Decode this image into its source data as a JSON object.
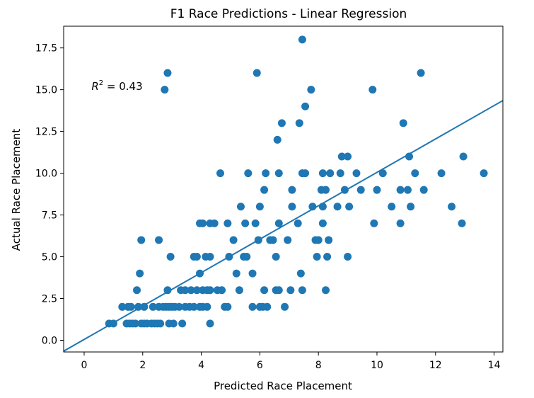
{
  "chart_data": {
    "type": "scatter",
    "title": "F1 Race Predictions - Linear Regression",
    "xlabel": "Predicted Race Placement",
    "ylabel": "Actual Race Placement",
    "xlim": [
      -0.7,
      14.3
    ],
    "ylim": [
      -0.7,
      18.8
    ],
    "xticks": [
      0,
      2,
      4,
      6,
      8,
      10,
      12,
      14
    ],
    "xtick_labels": [
      "0",
      "2",
      "4",
      "6",
      "8",
      "10",
      "12",
      "14"
    ],
    "yticks": [
      0.0,
      2.5,
      5.0,
      7.5,
      10.0,
      12.5,
      15.0,
      17.5
    ],
    "ytick_labels": [
      "0.0",
      "2.5",
      "5.0",
      "7.5",
      "10.0",
      "12.5",
      "15.0",
      "17.5"
    ],
    "grid": false,
    "color": "#1f77b4",
    "annotation": {
      "prefix": "R",
      "superscript": "2",
      "text": " = 0.43",
      "x": 0.25,
      "y": 15.2
    },
    "regression_line": {
      "x": [
        -0.7,
        14.3
      ],
      "y": [
        -0.65,
        14.35
      ]
    },
    "points": [
      {
        "x": 0.85,
        "y": 1
      },
      {
        "x": 1.0,
        "y": 1
      },
      {
        "x": 1.3,
        "y": 2
      },
      {
        "x": 1.5,
        "y": 2
      },
      {
        "x": 1.6,
        "y": 2
      },
      {
        "x": 1.45,
        "y": 1
      },
      {
        "x": 1.55,
        "y": 1
      },
      {
        "x": 1.65,
        "y": 1
      },
      {
        "x": 1.75,
        "y": 1
      },
      {
        "x": 1.8,
        "y": 3
      },
      {
        "x": 1.9,
        "y": 4
      },
      {
        "x": 1.95,
        "y": 6
      },
      {
        "x": 1.85,
        "y": 2
      },
      {
        "x": 2.05,
        "y": 2
      },
      {
        "x": 1.95,
        "y": 1
      },
      {
        "x": 2.05,
        "y": 1
      },
      {
        "x": 2.15,
        "y": 1
      },
      {
        "x": 2.3,
        "y": 1
      },
      {
        "x": 2.4,
        "y": 1
      },
      {
        "x": 2.5,
        "y": 1
      },
      {
        "x": 2.6,
        "y": 1
      },
      {
        "x": 2.35,
        "y": 2
      },
      {
        "x": 2.55,
        "y": 2
      },
      {
        "x": 2.55,
        "y": 6
      },
      {
        "x": 2.7,
        "y": 2
      },
      {
        "x": 2.8,
        "y": 2
      },
      {
        "x": 2.9,
        "y": 2
      },
      {
        "x": 3.0,
        "y": 2
      },
      {
        "x": 3.1,
        "y": 2
      },
      {
        "x": 2.85,
        "y": 3
      },
      {
        "x": 2.95,
        "y": 5
      },
      {
        "x": 2.9,
        "y": 1
      },
      {
        "x": 3.05,
        "y": 1
      },
      {
        "x": 3.25,
        "y": 2
      },
      {
        "x": 3.45,
        "y": 2
      },
      {
        "x": 3.6,
        "y": 2
      },
      {
        "x": 3.75,
        "y": 2
      },
      {
        "x": 3.3,
        "y": 3
      },
      {
        "x": 3.45,
        "y": 3
      },
      {
        "x": 3.65,
        "y": 3
      },
      {
        "x": 3.85,
        "y": 3
      },
      {
        "x": 3.35,
        "y": 1
      },
      {
        "x": 3.75,
        "y": 5
      },
      {
        "x": 3.85,
        "y": 5
      },
      {
        "x": 3.95,
        "y": 4
      },
      {
        "x": 3.95,
        "y": 7
      },
      {
        "x": 4.05,
        "y": 7
      },
      {
        "x": 3.95,
        "y": 2
      },
      {
        "x": 4.05,
        "y": 2
      },
      {
        "x": 4.2,
        "y": 2
      },
      {
        "x": 4.05,
        "y": 3
      },
      {
        "x": 4.2,
        "y": 3
      },
      {
        "x": 4.3,
        "y": 3
      },
      {
        "x": 4.15,
        "y": 5
      },
      {
        "x": 4.3,
        "y": 5
      },
      {
        "x": 4.3,
        "y": 7
      },
      {
        "x": 4.45,
        "y": 7
      },
      {
        "x": 4.3,
        "y": 1
      },
      {
        "x": 4.55,
        "y": 3
      },
      {
        "x": 4.7,
        "y": 3
      },
      {
        "x": 4.65,
        "y": 10
      },
      {
        "x": 4.8,
        "y": 2
      },
      {
        "x": 4.9,
        "y": 2
      },
      {
        "x": 4.9,
        "y": 7
      },
      {
        "x": 4.95,
        "y": 5
      },
      {
        "x": 5.1,
        "y": 6
      },
      {
        "x": 5.2,
        "y": 4
      },
      {
        "x": 5.3,
        "y": 3
      },
      {
        "x": 5.35,
        "y": 8
      },
      {
        "x": 5.45,
        "y": 5
      },
      {
        "x": 5.55,
        "y": 5
      },
      {
        "x": 5.5,
        "y": 7
      },
      {
        "x": 5.6,
        "y": 10
      },
      {
        "x": 5.75,
        "y": 4
      },
      {
        "x": 5.75,
        "y": 2
      },
      {
        "x": 5.85,
        "y": 7
      },
      {
        "x": 5.9,
        "y": 16
      },
      {
        "x": 5.95,
        "y": 6
      },
      {
        "x": 6.0,
        "y": 8
      },
      {
        "x": 6.0,
        "y": 2
      },
      {
        "x": 6.1,
        "y": 2
      },
      {
        "x": 6.25,
        "y": 2
      },
      {
        "x": 6.15,
        "y": 3
      },
      {
        "x": 6.15,
        "y": 9
      },
      {
        "x": 6.2,
        "y": 10
      },
      {
        "x": 6.35,
        "y": 6
      },
      {
        "x": 6.45,
        "y": 6
      },
      {
        "x": 6.55,
        "y": 5
      },
      {
        "x": 6.55,
        "y": 3
      },
      {
        "x": 6.65,
        "y": 3
      },
      {
        "x": 6.6,
        "y": 12
      },
      {
        "x": 6.65,
        "y": 10
      },
      {
        "x": 6.65,
        "y": 7
      },
      {
        "x": 6.75,
        "y": 13
      },
      {
        "x": 6.85,
        "y": 2
      },
      {
        "x": 6.95,
        "y": 6
      },
      {
        "x": 7.05,
        "y": 3
      },
      {
        "x": 7.1,
        "y": 9
      },
      {
        "x": 7.1,
        "y": 8
      },
      {
        "x": 7.3,
        "y": 7
      },
      {
        "x": 7.35,
        "y": 13
      },
      {
        "x": 7.4,
        "y": 4
      },
      {
        "x": 7.45,
        "y": 3
      },
      {
        "x": 7.45,
        "y": 10
      },
      {
        "x": 7.55,
        "y": 10
      },
      {
        "x": 7.45,
        "y": 18
      },
      {
        "x": 7.55,
        "y": 14
      },
      {
        "x": 7.75,
        "y": 15
      },
      {
        "x": 7.8,
        "y": 8
      },
      {
        "x": 7.9,
        "y": 6
      },
      {
        "x": 8.0,
        "y": 6
      },
      {
        "x": 7.95,
        "y": 5
      },
      {
        "x": 8.15,
        "y": 10
      },
      {
        "x": 8.1,
        "y": 9
      },
      {
        "x": 8.25,
        "y": 9
      },
      {
        "x": 8.15,
        "y": 8
      },
      {
        "x": 8.15,
        "y": 7
      },
      {
        "x": 8.25,
        "y": 3
      },
      {
        "x": 8.3,
        "y": 5
      },
      {
        "x": 8.35,
        "y": 6
      },
      {
        "x": 8.4,
        "y": 10
      },
      {
        "x": 8.65,
        "y": 8
      },
      {
        "x": 8.75,
        "y": 10
      },
      {
        "x": 8.8,
        "y": 11
      },
      {
        "x": 8.9,
        "y": 9
      },
      {
        "x": 9.0,
        "y": 11
      },
      {
        "x": 9.0,
        "y": 5
      },
      {
        "x": 9.05,
        "y": 8
      },
      {
        "x": 9.3,
        "y": 10
      },
      {
        "x": 9.45,
        "y": 9
      },
      {
        "x": 9.85,
        "y": 15
      },
      {
        "x": 9.9,
        "y": 7
      },
      {
        "x": 10.0,
        "y": 9
      },
      {
        "x": 10.2,
        "y": 10
      },
      {
        "x": 10.5,
        "y": 8
      },
      {
        "x": 10.8,
        "y": 7
      },
      {
        "x": 10.8,
        "y": 9
      },
      {
        "x": 10.9,
        "y": 13
      },
      {
        "x": 11.05,
        "y": 9
      },
      {
        "x": 11.1,
        "y": 11
      },
      {
        "x": 11.15,
        "y": 8
      },
      {
        "x": 11.3,
        "y": 10
      },
      {
        "x": 11.5,
        "y": 16
      },
      {
        "x": 11.6,
        "y": 9
      },
      {
        "x": 12.2,
        "y": 10
      },
      {
        "x": 12.55,
        "y": 8
      },
      {
        "x": 12.9,
        "y": 7
      },
      {
        "x": 12.95,
        "y": 11
      },
      {
        "x": 13.65,
        "y": 10
      },
      {
        "x": 2.75,
        "y": 15
      },
      {
        "x": 2.85,
        "y": 16
      }
    ]
  }
}
